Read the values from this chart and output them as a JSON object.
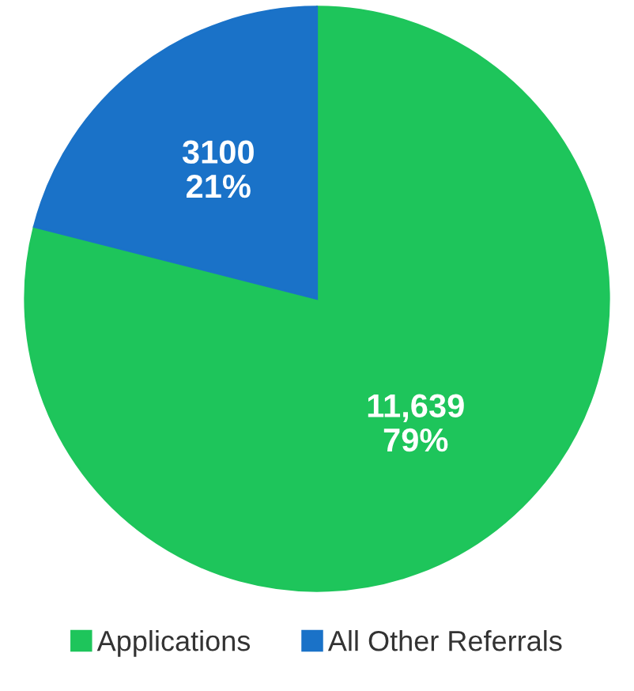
{
  "chart_data": {
    "type": "pie",
    "categories": [
      "Applications",
      "All Other Referrals"
    ],
    "values": [
      11639,
      3100
    ],
    "colors": [
      "#1ec55b",
      "#1a72c8"
    ],
    "value_labels": [
      "11,639\n79%",
      "3100\n21%"
    ],
    "legend": "bottom"
  }
}
